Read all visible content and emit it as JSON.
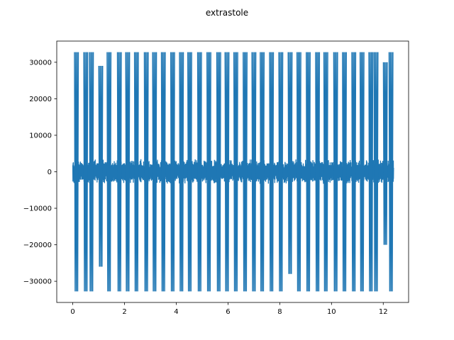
{
  "chart_data": {
    "type": "line",
    "title": "extrastole",
    "xlabel": "",
    "ylabel": "",
    "xlim": [
      -0.62,
      12.98
    ],
    "ylim": [
      -35800,
      35800
    ],
    "xticks": [
      0,
      2,
      4,
      6,
      8,
      10,
      12
    ],
    "xtick_labels": [
      "0",
      "2",
      "4",
      "6",
      "8",
      "10",
      "12"
    ],
    "yticks": [
      -30000,
      -20000,
      -10000,
      0,
      10000,
      20000,
      30000
    ],
    "ytick_labels": [
      "−30000",
      "−20000",
      "−10000",
      "0",
      "10000",
      "20000",
      "30000"
    ],
    "grid": false,
    "legend": "none",
    "series": [
      {
        "color": "#1f77b4",
        "x_range": [
          0,
          12.4
        ],
        "noise_amplitude": 3500,
        "spikes": [
          {
            "t": 0.14,
            "max": 32767,
            "min": -32768
          },
          {
            "t": 0.5,
            "max": 32767,
            "min": -32768
          },
          {
            "t": 0.72,
            "max": 32767,
            "min": -32768
          },
          {
            "t": 1.08,
            "max": 29000,
            "min": -26000
          },
          {
            "t": 1.4,
            "max": 32767,
            "min": -32768
          },
          {
            "t": 1.8,
            "max": 32767,
            "min": -32768
          },
          {
            "t": 2.12,
            "max": 32767,
            "min": -32768
          },
          {
            "t": 2.46,
            "max": 32767,
            "min": -32768
          },
          {
            "t": 2.84,
            "max": 32767,
            "min": -32768
          },
          {
            "t": 3.16,
            "max": 32767,
            "min": -32768
          },
          {
            "t": 3.5,
            "max": 32767,
            "min": -32768
          },
          {
            "t": 3.86,
            "max": 32767,
            "min": -32768
          },
          {
            "t": 4.2,
            "max": 32767,
            "min": -32768
          },
          {
            "t": 4.52,
            "max": 32767,
            "min": -32768
          },
          {
            "t": 4.9,
            "max": 32767,
            "min": -32768
          },
          {
            "t": 5.26,
            "max": 32767,
            "min": -32768
          },
          {
            "t": 5.64,
            "max": 32767,
            "min": -32768
          },
          {
            "t": 5.96,
            "max": 32767,
            "min": -32768
          },
          {
            "t": 6.3,
            "max": 32767,
            "min": -32768
          },
          {
            "t": 6.66,
            "max": 32767,
            "min": -32768
          },
          {
            "t": 7.0,
            "max": 32767,
            "min": -32768
          },
          {
            "t": 7.32,
            "max": 32767,
            "min": -32768
          },
          {
            "t": 7.68,
            "max": 32767,
            "min": -32768
          },
          {
            "t": 8.04,
            "max": 32767,
            "min": -32768
          },
          {
            "t": 8.4,
            "max": 32767,
            "min": -28000
          },
          {
            "t": 8.74,
            "max": 32767,
            "min": -32768
          },
          {
            "t": 9.1,
            "max": 32767,
            "min": -32768
          },
          {
            "t": 9.46,
            "max": 32767,
            "min": -32768
          },
          {
            "t": 9.78,
            "max": 32767,
            "min": -32768
          },
          {
            "t": 10.16,
            "max": 32767,
            "min": -32768
          },
          {
            "t": 10.5,
            "max": 32767,
            "min": -32768
          },
          {
            "t": 10.86,
            "max": 32767,
            "min": -32768
          },
          {
            "t": 11.18,
            "max": 32767,
            "min": -32768
          },
          {
            "t": 11.52,
            "max": 32767,
            "min": -32768
          },
          {
            "t": 11.72,
            "max": 32767,
            "min": -32768
          },
          {
            "t": 12.08,
            "max": 30000,
            "min": -20000
          },
          {
            "t": 12.3,
            "max": 32767,
            "min": -32768
          }
        ]
      }
    ]
  }
}
